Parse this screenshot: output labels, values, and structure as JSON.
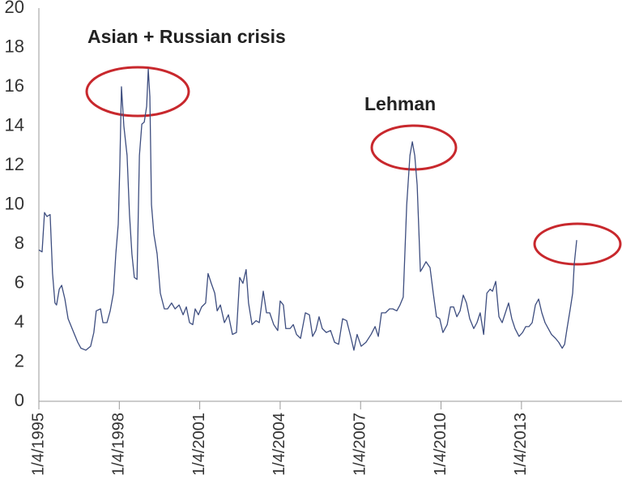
{
  "chart_data": {
    "type": "line",
    "color": "#3d4d7f",
    "annotations": [
      "Asian + Russian crisis",
      "Lehman"
    ],
    "x": [
      1995.0,
      1995.12,
      1995.21,
      1995.3,
      1995.42,
      1995.51,
      1995.6,
      1995.66,
      1995.76,
      1995.85,
      1995.97,
      1996.09,
      1996.27,
      1996.45,
      1996.57,
      1996.75,
      1996.93,
      1997.05,
      1997.14,
      1997.3,
      1997.39,
      1997.54,
      1997.66,
      1997.78,
      1997.87,
      1997.96,
      1998.02,
      1998.08,
      1998.17,
      1998.29,
      1998.38,
      1998.47,
      1998.56,
      1998.66,
      1998.75,
      1998.84,
      1998.93,
      1999.02,
      1999.08,
      1999.14,
      1999.2,
      1999.29,
      1999.41,
      1999.53,
      1999.68,
      1999.8,
      1999.95,
      2000.08,
      2000.23,
      2000.38,
      2000.5,
      2000.62,
      2000.74,
      2000.83,
      2000.95,
      2001.07,
      2001.22,
      2001.31,
      2001.43,
      2001.56,
      2001.65,
      2001.77,
      2001.92,
      2002.07,
      2002.22,
      2002.37,
      2002.49,
      2002.61,
      2002.73,
      2002.82,
      2002.95,
      2003.1,
      2003.22,
      2003.37,
      2003.49,
      2003.61,
      2003.76,
      2003.91,
      2004.0,
      2004.12,
      2004.21,
      2004.37,
      2004.49,
      2004.61,
      2004.76,
      2004.94,
      2005.09,
      2005.21,
      2005.33,
      2005.45,
      2005.57,
      2005.72,
      2005.88,
      2006.03,
      2006.18,
      2006.33,
      2006.48,
      2006.63,
      2006.75,
      2006.87,
      2007.02,
      2007.2,
      2007.39,
      2007.54,
      2007.66,
      2007.78,
      2007.93,
      2008.08,
      2008.2,
      2008.35,
      2008.47,
      2008.59,
      2008.72,
      2008.84,
      2008.93,
      2009.02,
      2009.11,
      2009.23,
      2009.32,
      2009.44,
      2009.59,
      2009.71,
      2009.83,
      2009.95,
      2010.07,
      2010.23,
      2010.35,
      2010.47,
      2010.59,
      2010.71,
      2010.83,
      2010.95,
      2011.07,
      2011.22,
      2011.34,
      2011.46,
      2011.59,
      2011.71,
      2011.83,
      2011.92,
      2012.04,
      2012.16,
      2012.28,
      2012.4,
      2012.52,
      2012.64,
      2012.76,
      2012.91,
      2013.04,
      2013.16,
      2013.28,
      2013.4,
      2013.52,
      2013.64,
      2013.76,
      2013.88,
      2014.0,
      2014.12,
      2014.27,
      2014.39,
      2014.52,
      2014.61,
      2014.7,
      2014.82,
      2014.91,
      2014.97,
      2015.06
    ],
    "values": [
      7.7,
      7.6,
      9.6,
      9.4,
      9.5,
      6.5,
      5.0,
      4.9,
      5.7,
      5.9,
      5.2,
      4.2,
      3.6,
      3.0,
      2.7,
      2.6,
      2.8,
      3.5,
      4.6,
      4.7,
      4.0,
      4.0,
      4.6,
      5.5,
      7.5,
      9.0,
      12.0,
      16.0,
      14.0,
      12.5,
      9.5,
      7.5,
      6.3,
      6.2,
      12.5,
      14.1,
      14.2,
      15.0,
      16.9,
      15.5,
      10.0,
      8.5,
      7.5,
      5.5,
      4.7,
      4.7,
      5.0,
      4.7,
      4.9,
      4.4,
      4.8,
      4.0,
      3.9,
      4.7,
      4.4,
      4.8,
      5.0,
      6.5,
      6.0,
      5.5,
      4.6,
      4.9,
      4.0,
      4.4,
      3.4,
      3.5,
      6.3,
      6.0,
      6.7,
      5.0,
      3.9,
      4.1,
      4.0,
      5.6,
      4.5,
      4.5,
      3.9,
      3.6,
      5.1,
      4.9,
      3.7,
      3.7,
      3.9,
      3.4,
      3.2,
      4.5,
      4.4,
      3.3,
      3.6,
      4.3,
      3.7,
      3.5,
      3.6,
      3.0,
      2.9,
      4.2,
      4.1,
      3.3,
      2.6,
      3.4,
      2.8,
      3.0,
      3.4,
      3.8,
      3.3,
      4.5,
      4.5,
      4.7,
      4.7,
      4.6,
      4.9,
      5.3,
      10.0,
      12.5,
      13.2,
      12.5,
      11.0,
      6.6,
      6.8,
      7.1,
      6.8,
      5.5,
      4.3,
      4.2,
      3.5,
      3.9,
      4.8,
      4.8,
      4.3,
      4.6,
      5.4,
      5.0,
      4.2,
      3.7,
      4.0,
      4.5,
      3.4,
      5.5,
      5.7,
      5.6,
      6.1,
      4.3,
      4.0,
      4.5,
      5.0,
      4.2,
      3.7,
      3.3,
      3.5,
      3.8,
      3.8,
      4.0,
      4.9,
      5.2,
      4.5,
      4.0,
      3.7,
      3.4,
      3.2,
      3.0,
      2.7,
      2.9,
      3.7,
      4.7,
      5.5,
      7.0,
      8.2
    ],
    "xlim": [
      1995,
      2016.75
    ],
    "xticks": [
      {
        "value": 1995,
        "label": "1/4/1995"
      },
      {
        "value": 1998,
        "label": "1/4/1998"
      },
      {
        "value": 2001,
        "label": "1/4/2001"
      },
      {
        "value": 2004,
        "label": "1/4/2004"
      },
      {
        "value": 2007,
        "label": "1/4/2007"
      },
      {
        "value": 2010,
        "label": "1/4/2010"
      },
      {
        "value": 2013,
        "label": "1/4/2013"
      }
    ],
    "ylim": [
      0,
      20
    ],
    "yticks": [
      0,
      2,
      4,
      6,
      8,
      10,
      12,
      14,
      16,
      18,
      20
    ],
    "grid": false
  }
}
